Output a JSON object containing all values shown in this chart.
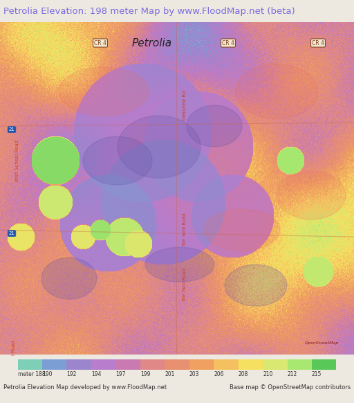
{
  "title": "Petrolia Elevation: 198 meter Map by www.FloodMap.net (beta)",
  "title_color": "#7b6ee0",
  "title_bg": "#ede8e0",
  "title_fontsize": 9.5,
  "colorbar_labels": [
    "meter 188",
    "190",
    "192",
    "194",
    "197",
    "199",
    "201",
    "203",
    "206",
    "208",
    "210",
    "212",
    "215"
  ],
  "colorbar_colors": [
    "#7ecfb8",
    "#7b9fd4",
    "#9b85cc",
    "#b87dcc",
    "#c97ab0",
    "#e08888",
    "#e89070",
    "#f0a060",
    "#f5c060",
    "#f5e060",
    "#d8e870",
    "#a8e870",
    "#58c858"
  ],
  "footer_left": "Petrolia Elevation Map developed by www.FloodMap.net",
  "footer_right": "Base map © OpenStreetMap contributors",
  "map_bg": "#f0a080",
  "fig_width": 5.12,
  "fig_height": 5.82
}
